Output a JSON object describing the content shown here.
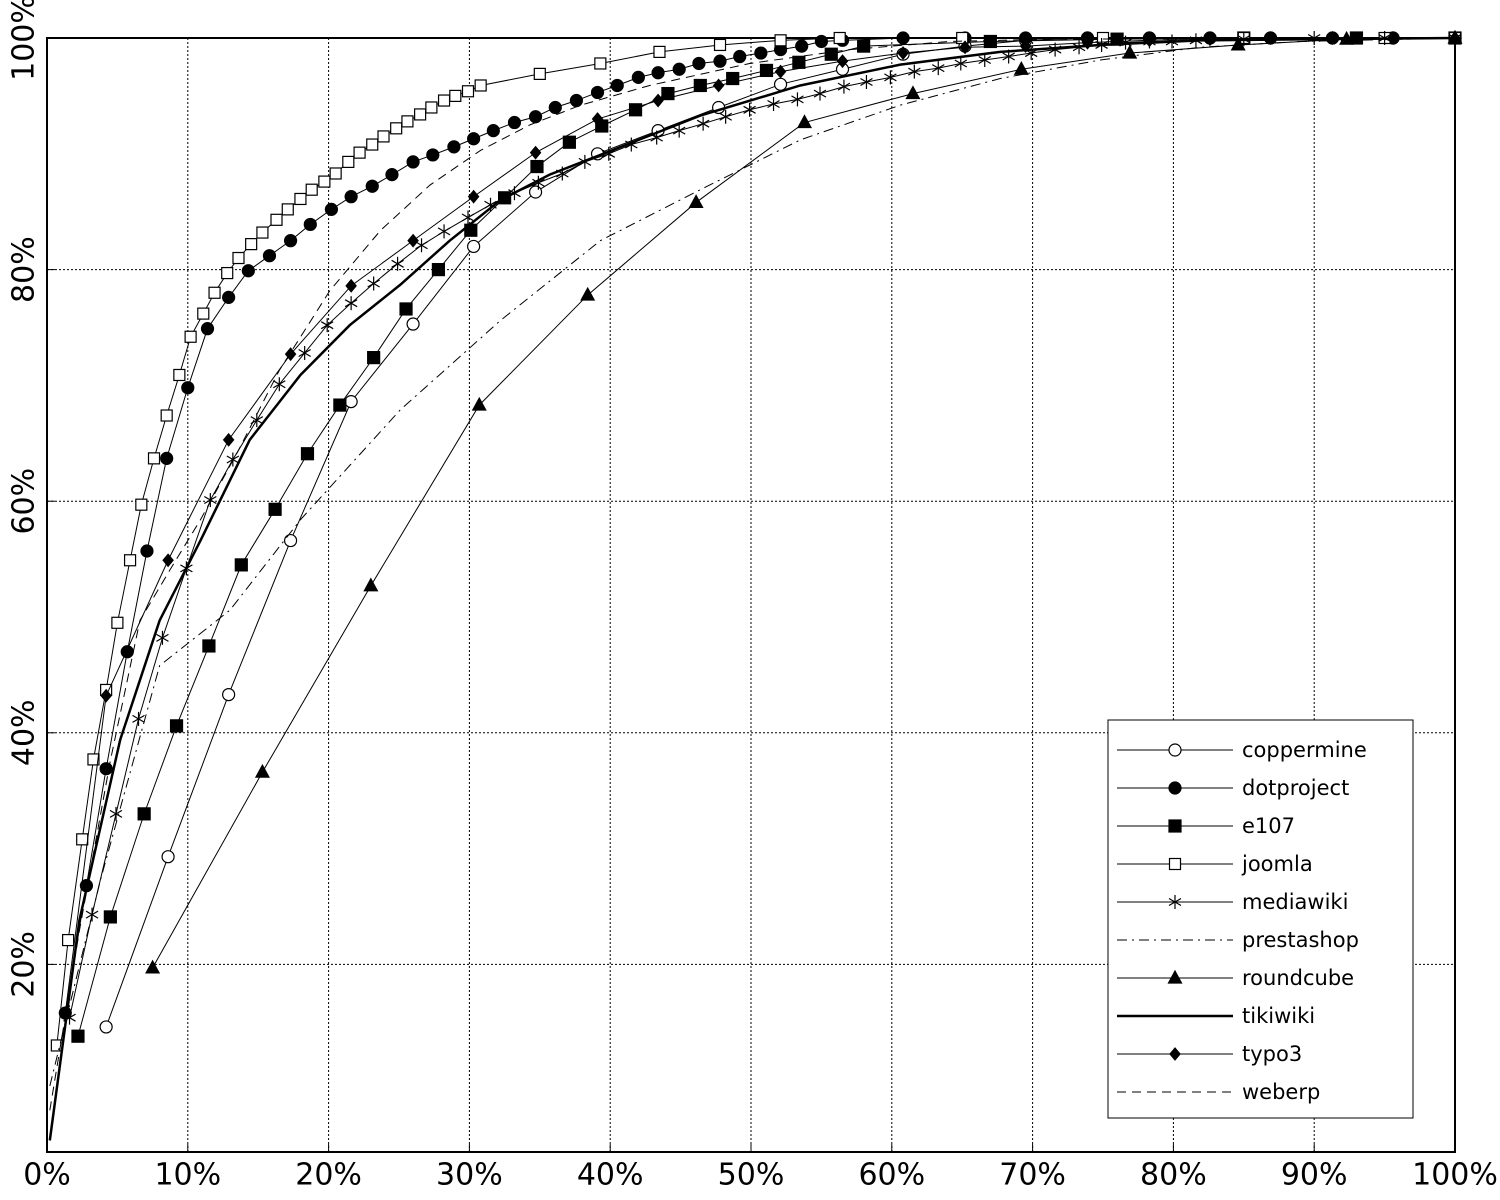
{
  "chart_data": {
    "type": "line",
    "xlim": [
      0,
      100
    ],
    "ylim": [
      3.8,
      100
    ],
    "xticks": [
      {
        "value": 0,
        "label": "0%"
      },
      {
        "value": 10,
        "label": "10%"
      },
      {
        "value": 20,
        "label": "20%"
      },
      {
        "value": 30,
        "label": "30%"
      },
      {
        "value": 40,
        "label": "40%"
      },
      {
        "value": 50,
        "label": "50%"
      },
      {
        "value": 60,
        "label": "60%"
      },
      {
        "value": 70,
        "label": "70%"
      },
      {
        "value": 80,
        "label": "80%"
      },
      {
        "value": 90,
        "label": "90%"
      },
      {
        "value": 100,
        "label": "100%"
      }
    ],
    "yticks": [
      {
        "value": 20,
        "label": "20%"
      },
      {
        "value": 40,
        "label": "40%"
      },
      {
        "value": 60,
        "label": "60%"
      },
      {
        "value": 80,
        "label": "80%"
      },
      {
        "value": 100,
        "label": "100%"
      }
    ],
    "grid": true,
    "legend": "lower right",
    "series": [
      {
        "name": "coppermine",
        "color": "#000000",
        "style": "solid",
        "marker": "circle-open",
        "x": [
          4.2,
          8.6,
          12.9,
          17.3,
          21.6,
          26.0,
          30.3,
          34.7,
          39.1,
          43.4,
          47.7,
          52.1,
          56.5,
          60.8,
          65.2,
          69.5,
          73.9,
          78.3,
          82.6,
          86.9,
          91.3,
          95.6,
          100
        ],
        "values": [
          14.6,
          29.3,
          43.3,
          56.6,
          68.6,
          75.3,
          82.0,
          86.7,
          90.0,
          92.0,
          94.0,
          96.0,
          97.3,
          98.6,
          99.3,
          99.8,
          100,
          100,
          100,
          100,
          100,
          100,
          100
        ]
      },
      {
        "name": "dotproject",
        "color": "#000000",
        "style": "solid",
        "marker": "circle-filled",
        "x": [
          1.3,
          2.8,
          4.2,
          5.7,
          7.1,
          8.5,
          10.0,
          11.4,
          12.9,
          14.3,
          15.8,
          17.3,
          18.7,
          20.2,
          21.6,
          23.1,
          24.5,
          26.0,
          27.4,
          28.9,
          30.3,
          31.7,
          33.2,
          34.7,
          36.1,
          37.6,
          39.1,
          40.5,
          42.0,
          43.4,
          44.9,
          46.3,
          47.8,
          49.2,
          50.7,
          52.1,
          53.6,
          55.0,
          56.5,
          60.8,
          65.2,
          69.5,
          73.9,
          78.3,
          82.6,
          86.9,
          91.3,
          95.6,
          100
        ],
        "values": [
          15.8,
          26.8,
          36.9,
          47.0,
          55.7,
          63.7,
          69.8,
          74.9,
          77.6,
          79.9,
          81.2,
          82.5,
          83.9,
          85.2,
          86.3,
          87.2,
          88.2,
          89.3,
          89.9,
          90.6,
          91.3,
          92.0,
          92.7,
          93.2,
          94.0,
          94.6,
          95.3,
          95.9,
          96.6,
          97.0,
          97.3,
          97.8,
          98.0,
          98.4,
          98.7,
          99.0,
          99.3,
          99.7,
          99.8,
          100,
          100,
          100,
          100,
          100,
          100,
          100,
          100,
          100,
          100
        ]
      },
      {
        "name": "e107",
        "color": "#000000",
        "style": "solid",
        "marker": "square-filled",
        "x": [
          2.2,
          4.5,
          6.9,
          9.2,
          11.5,
          13.8,
          16.2,
          18.5,
          20.8,
          23.2,
          25.5,
          27.8,
          30.1,
          32.5,
          34.8,
          37.1,
          39.4,
          41.8,
          44.1,
          46.4,
          48.7,
          51.1,
          53.4,
          55.7,
          58.0,
          67.0,
          76.0,
          85.0,
          93.0,
          100
        ],
        "values": [
          13.8,
          24.1,
          33.0,
          40.6,
          47.5,
          54.5,
          59.3,
          64.1,
          68.3,
          72.4,
          76.6,
          80.0,
          83.4,
          86.2,
          88.9,
          91.0,
          92.4,
          93.8,
          95.2,
          95.9,
          96.5,
          97.2,
          97.9,
          98.6,
          99.3,
          99.7,
          99.9,
          100,
          100,
          100
        ]
      },
      {
        "name": "joomla",
        "color": "#000000",
        "style": "solid",
        "marker": "square-open",
        "x": [
          0.7,
          1.5,
          2.5,
          3.3,
          4.2,
          5.0,
          5.9,
          6.7,
          7.6,
          8.5,
          9.4,
          10.2,
          11.1,
          11.9,
          12.8,
          13.6,
          14.5,
          15.3,
          16.3,
          17.1,
          18.0,
          18.8,
          19.7,
          20.5,
          21.4,
          22.2,
          23.1,
          23.9,
          24.8,
          25.6,
          26.5,
          27.3,
          28.2,
          29.0,
          29.9,
          30.8,
          35.0,
          39.3,
          43.5,
          47.8,
          52.1,
          56.3,
          65.0,
          75.0,
          85.0,
          95.0,
          100
        ],
        "values": [
          13.0,
          22.1,
          30.8,
          37.7,
          43.7,
          49.5,
          54.9,
          59.7,
          63.7,
          67.4,
          70.9,
          74.2,
          76.2,
          78.0,
          79.7,
          81.0,
          82.2,
          83.2,
          84.3,
          85.2,
          86.1,
          86.9,
          87.6,
          88.3,
          89.3,
          90.1,
          90.8,
          91.5,
          92.2,
          92.8,
          93.4,
          94.0,
          94.6,
          95.0,
          95.4,
          95.9,
          96.9,
          97.8,
          98.8,
          99.4,
          99.8,
          100,
          100,
          100,
          100,
          100,
          100
        ]
      },
      {
        "name": "mediawiki",
        "color": "#000000",
        "style": "solid",
        "marker": "asterisk",
        "x": [
          1.6,
          3.2,
          4.9,
          6.5,
          8.2,
          9.9,
          11.6,
          13.2,
          14.9,
          16.5,
          18.3,
          19.9,
          21.6,
          23.2,
          24.9,
          26.6,
          28.2,
          29.9,
          31.5,
          33.2,
          34.9,
          36.6,
          38.2,
          39.9,
          41.5,
          43.3,
          44.9,
          46.6,
          48.2,
          49.9,
          51.6,
          53.3,
          54.9,
          56.6,
          58.2,
          59.9,
          61.6,
          63.3,
          64.9,
          66.6,
          68.3,
          69.9,
          71.6,
          73.3,
          74.9,
          76.6,
          78.3,
          79.9,
          81.6,
          85.0,
          90.0,
          95.0,
          100
        ],
        "values": [
          15.4,
          24.3,
          33.0,
          41.2,
          48.2,
          54.2,
          60.1,
          63.6,
          67.0,
          70.1,
          72.8,
          75.2,
          77.1,
          78.8,
          80.5,
          82.1,
          83.3,
          84.5,
          85.6,
          86.6,
          87.5,
          88.3,
          89.3,
          90.0,
          90.8,
          91.4,
          92.0,
          92.6,
          93.2,
          93.8,
          94.3,
          94.7,
          95.2,
          95.8,
          96.2,
          96.6,
          97.1,
          97.4,
          97.8,
          98.1,
          98.4,
          98.7,
          99.0,
          99.2,
          99.4,
          99.6,
          99.7,
          99.7,
          99.8,
          99.9,
          100,
          100,
          100
        ]
      },
      {
        "name": "prestashop",
        "color": "#000000",
        "style": "dashdot",
        "marker": "none",
        "x": [
          0.2,
          3.8,
          8.0,
          13.0,
          18.0,
          25.1,
          32.2,
          39.3,
          46.4,
          53.5,
          60.6,
          67.7,
          74.8,
          81.9,
          89.0,
          100
        ],
        "values": [
          9.5,
          27.3,
          45.8,
          50.6,
          58.4,
          67.9,
          75.6,
          82.5,
          86.9,
          91.2,
          94.2,
          96.5,
          98.1,
          99.2,
          99.7,
          100
        ]
      },
      {
        "name": "roundcube",
        "color": "#000000",
        "style": "solid",
        "marker": "triangle",
        "x": [
          7.5,
          15.3,
          23.0,
          30.7,
          38.4,
          46.1,
          53.8,
          61.5,
          69.2,
          76.9,
          84.6,
          92.3,
          100
        ],
        "values": [
          19.7,
          36.6,
          52.7,
          68.3,
          77.8,
          85.8,
          92.7,
          95.2,
          97.3,
          98.7,
          99.4,
          99.9,
          100
        ]
      },
      {
        "name": "tikiwiki",
        "color": "#000000",
        "style": "thick",
        "marker": "none",
        "x": [
          0.2,
          2.3,
          5.2,
          8.0,
          10.9,
          14.4,
          18.0,
          21.5,
          25.1,
          28.6,
          32.2,
          35.7,
          39.3,
          46.4,
          53.5,
          60.6,
          67.7,
          74.8,
          81.9,
          100
        ],
        "values": [
          4.8,
          23.8,
          39.4,
          49.7,
          56.6,
          65.3,
          70.9,
          75.2,
          78.7,
          82.5,
          86.0,
          88.2,
          89.9,
          93.3,
          95.9,
          97.7,
          98.8,
          99.4,
          99.8,
          100
        ]
      },
      {
        "name": "typo3",
        "color": "#000000",
        "style": "solid",
        "marker": "diamond",
        "x": [
          1.3,
          4.2,
          8.6,
          12.9,
          17.3,
          21.6,
          26.0,
          30.3,
          34.7,
          39.1,
          43.4,
          47.7,
          52.1,
          56.5,
          60.8,
          65.2,
          69.5,
          73.9,
          78.3,
          82.6,
          86.9,
          91.3,
          95.6,
          100
        ],
        "values": [
          15.8,
          43.2,
          54.9,
          65.3,
          72.7,
          78.6,
          82.5,
          86.3,
          90.1,
          93.0,
          94.6,
          95.9,
          97.1,
          98.0,
          98.7,
          99.2,
          99.3,
          99.6,
          99.8,
          99.9,
          100,
          100,
          100,
          100
        ]
      },
      {
        "name": "weberp",
        "color": "#000000",
        "style": "dashed",
        "marker": "none",
        "x": [
          0.2,
          2.3,
          4.5,
          6.6,
          8.7,
          10.9,
          13.6,
          16.5,
          20.1,
          23.7,
          27.2,
          30.8,
          34.3,
          37.9,
          42.8,
          49.9,
          57.0,
          64.1,
          71.2,
          100
        ],
        "values": [
          7.4,
          22.9,
          37.6,
          49.7,
          54.0,
          58.4,
          64.4,
          71.3,
          78.2,
          83.4,
          87.3,
          90.3,
          92.5,
          94.2,
          95.9,
          97.8,
          99.0,
          99.7,
          99.9,
          100
        ]
      }
    ]
  }
}
